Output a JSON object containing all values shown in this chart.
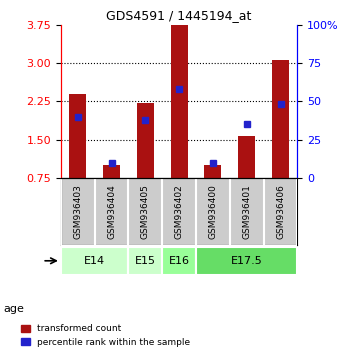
{
  "title": "GDS4591 / 1445194_at",
  "samples": [
    "GSM936403",
    "GSM936404",
    "GSM936405",
    "GSM936402",
    "GSM936400",
    "GSM936401",
    "GSM936406"
  ],
  "transformed_counts": [
    2.4,
    1.0,
    2.22,
    3.75,
    1.0,
    1.57,
    3.07
  ],
  "percentile_ranks": [
    40,
    10,
    38,
    58,
    10,
    35,
    48
  ],
  "age_groups_raw": [
    [
      "E14",
      [
        "GSM936403",
        "GSM936404"
      ]
    ],
    [
      "E15",
      [
        "GSM936405"
      ]
    ],
    [
      "E16",
      [
        "GSM936402"
      ]
    ],
    [
      "E17.5",
      [
        "GSM936400",
        "GSM936401",
        "GSM936406"
      ]
    ]
  ],
  "age_colors": {
    "E14": "#ccffcc",
    "E15": "#ccffcc",
    "E16": "#99ff99",
    "E17.5": "#66dd66"
  },
  "ylim_left": [
    0.75,
    3.75
  ],
  "yticks_left": [
    0.75,
    1.5,
    2.25,
    3.0,
    3.75
  ],
  "ylim_right": [
    0,
    100
  ],
  "yticks_right": [
    0,
    25,
    50,
    75,
    100
  ],
  "bar_color": "#aa1111",
  "percentile_color": "#2222cc",
  "bar_width": 0.5,
  "background_plot": "#ffffff",
  "background_samples": "#cccccc",
  "gridlines": [
    1.5,
    2.25,
    3.0
  ],
  "legend_labels": [
    "transformed count",
    "percentile rank within the sample"
  ]
}
